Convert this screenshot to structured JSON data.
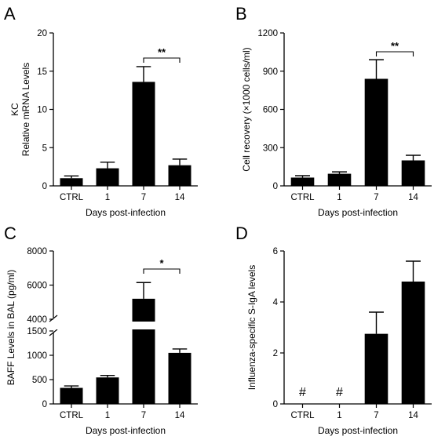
{
  "chart_data": [
    {
      "type": "bar",
      "panel": "A",
      "categories": [
        "CTRL",
        "1",
        "7",
        "14"
      ],
      "values": [
        1.0,
        2.3,
        13.6,
        2.7
      ],
      "errors": [
        0.3,
        0.8,
        2.0,
        0.8
      ],
      "xlabel": "Days post-infection",
      "ylabel_lines": [
        "KC",
        "Relative mRNA Levels"
      ],
      "ylim": [
        0,
        20
      ],
      "yticks": [
        "0",
        "5",
        "10",
        "15",
        "20"
      ],
      "significance": {
        "between": [
          "7",
          "14"
        ],
        "label": "**"
      },
      "bar_color": "#000000"
    },
    {
      "type": "bar",
      "panel": "B",
      "categories": [
        "CTRL",
        "1",
        "7",
        "14"
      ],
      "values": [
        65,
        95,
        840,
        200
      ],
      "errors": [
        15,
        15,
        150,
        40
      ],
      "xlabel": "Days post-infection",
      "ylabel_lines": [
        "Cell recovery (×1000 cells/ml)"
      ],
      "ylim": [
        0,
        1200
      ],
      "yticks": [
        "0",
        "300",
        "600",
        "900",
        "1200"
      ],
      "significance": {
        "between": [
          "7",
          "14"
        ],
        "label": "**"
      },
      "bar_color": "#000000"
    },
    {
      "type": "bar",
      "panel": "C",
      "categories": [
        "CTRL",
        "1",
        "7",
        "14"
      ],
      "values": [
        330,
        545,
        5200,
        1050
      ],
      "errors": [
        40,
        40,
        950,
        80
      ],
      "xlabel": "Days post-infection",
      "ylabel_lines": [
        "BAFF Levels in BAL (pg/ml)"
      ],
      "ylim": [
        0,
        8000
      ],
      "axis_break": [
        1500,
        4000
      ],
      "yticks": [
        "0",
        "500",
        "1000",
        "1500",
        "4000",
        "6000",
        "8000"
      ],
      "significance": {
        "between": [
          "7",
          "14"
        ],
        "label": "*"
      },
      "bar_color": "#000000"
    },
    {
      "type": "bar",
      "panel": "D",
      "categories": [
        "CTRL",
        "1",
        "7",
        "14"
      ],
      "values": [
        0,
        0,
        2.75,
        4.8
      ],
      "errors": [
        0,
        0,
        0.85,
        0.8
      ],
      "xlabel": "Days post-infection",
      "ylabel_lines": [
        "Influenza-specific S-IgA levels"
      ],
      "ylim": [
        0,
        6
      ],
      "yticks": [
        "0",
        "2",
        "4",
        "6"
      ],
      "annotations": [
        {
          "category": "CTRL",
          "text": "#"
        },
        {
          "category": "1",
          "text": "#"
        }
      ],
      "bar_color": "#000000"
    }
  ]
}
